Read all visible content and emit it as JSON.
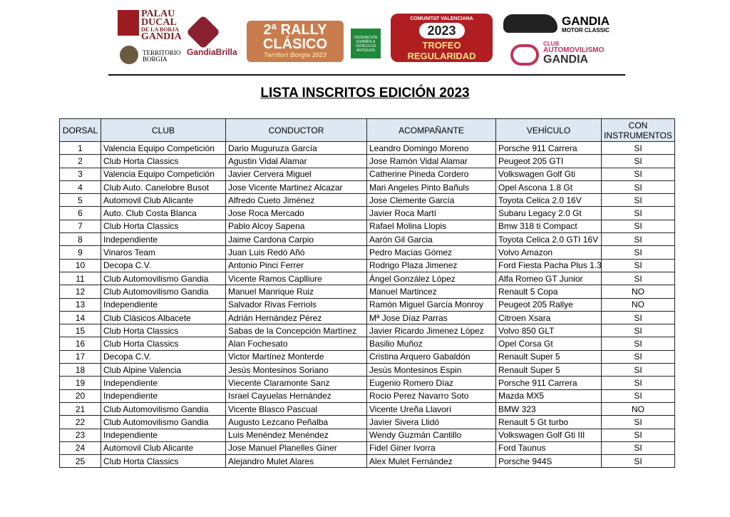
{
  "logos": {
    "palau": {
      "line1": "PALAU",
      "line2": "DUCAL",
      "line3": "DE LA BORJA",
      "line4": "GANDIA"
    },
    "territorio": {
      "line1": "TERRITORIO",
      "line2": "BORGIA"
    },
    "gandia_brilla": "GandiaBrilla",
    "rally": {
      "line1": "2ª RALLY",
      "line2": "CLÁSICO",
      "line3": "Territori Borgia 2023"
    },
    "feva": "FEDERACIÓN ESPAÑOLA VEHÍCULOS ANTIGUOS",
    "trofeo": {
      "top": "COMUNITAT VALENCIANA",
      "year": "2023",
      "bottom": "TROFEO REGULARIDAD"
    },
    "gandia_motor": {
      "line1": "GANDIA",
      "line2": "MOTOR CLASSIC"
    },
    "club_auto": {
      "line1": "CLUB",
      "line2": "AUTOMOVILISMO",
      "line3": "GANDIA"
    }
  },
  "header": {
    "title": "LISTA INSCRITOS EDICIÓN 2023"
  },
  "table": {
    "columns": [
      "DORSAL",
      "CLUB",
      "CONDUCTOR",
      "ACOMPAÑANTE",
      "VEHÍCULO",
      "CON INSTRUMENTOS"
    ],
    "rows": [
      [
        1,
        "Valencia Equipo Competición",
        "Dario Muguruza García",
        "Leandro Domingo Moreno",
        "Porsche 911 Carrera",
        "SI"
      ],
      [
        2,
        "Club Horta Classics",
        "Agustin Vidal Alamar",
        "Jose Ramón Vidal Alamar",
        "Peugeot 205 GTI",
        "SI"
      ],
      [
        3,
        "Valencia Equipo Competición",
        "Javier Cervera Miguel",
        "Catherine Pineda Cordero",
        "Volkswagen Golf Gti",
        "SI"
      ],
      [
        4,
        "Club Auto. Canelobre Busot",
        "Jose Vicente Martinez Alcazar",
        "Mari Angeles Pinto Bañuls",
        "Opel Ascona 1.8 Gt",
        "SI"
      ],
      [
        5,
        "Automovil Club Alicante",
        "Alfredo Cueto Jiménez",
        "Jose Clemente García",
        "Toyota Celica 2.0 16V",
        "SI"
      ],
      [
        6,
        "Auto. Club Costa Blanca",
        "Jose Roca Mercado",
        "Javier Roca Martí",
        "Subaru Legacy 2.0 Gt",
        "SI"
      ],
      [
        7,
        "Club Horta Classics",
        "Pablo Alcoy Sapena",
        "Rafael Molina Llopis",
        "Bmw 318 ti Compact",
        "SI"
      ],
      [
        8,
        "Independiente",
        "Jaime Cardona Carpio",
        "Aarón Gil Garcia",
        "Toyota Celica 2.0 GTI 16V",
        "SI"
      ],
      [
        9,
        "Vinaros Team",
        "Juan Luis Redó Añó",
        "Pedro Macías Gómez",
        "Volvo Amazon",
        "SI"
      ],
      [
        10,
        "Decopa C.V.",
        "Antonio Pinci Ferrer",
        "Rodrigo Plaza Jimenez",
        "Ford Fiesta Pacha Plus 1.3",
        "SI"
      ],
      [
        11,
        "Club Automovilismo Gandia",
        "Vicente Ramos Caplliure",
        "Ángel González López",
        "Alfa Romeo GT Junior",
        "SI"
      ],
      [
        12,
        "Club Automovilismo Gandia",
        "Manuel Manrique Ruiz",
        "Manuel Martincez",
        "Renault 5 Copa",
        "NO"
      ],
      [
        13,
        "Independiente",
        "Salvador Rivas Ferriols",
        "Ramón Miguel García Monroy",
        "Peugeot 205 Rallye",
        "NO"
      ],
      [
        14,
        "Club Clásicos Albacete",
        "Adrián Hernández Pérez",
        "Mª Jose Díaz Parras",
        "Citroen Xsara",
        "SI"
      ],
      [
        15,
        "Club Horta Classics",
        "Sabas de la Concepción Martínez",
        "Javier Ricardo Jimenez López",
        "Volvo 850 GLT",
        "SI"
      ],
      [
        16,
        "Club Horta Classics",
        "Alan Fochesato",
        "Basilio Muñoz",
        "Opel Corsa Gt",
        "SI"
      ],
      [
        17,
        "Decopa C.V.",
        "Victor Martínez  Monterde",
        "Cristina Arquero  Gabaldón",
        "Renault Super 5",
        "SI"
      ],
      [
        18,
        "Club Alpine Valencia",
        "Jesús Montesinos Soriano",
        "Jesús Montesinos Espin",
        "Renault Super 5",
        "SI"
      ],
      [
        19,
        "Independiente",
        "Viecente Claramonte Sanz",
        "Eugenio Romero Díaz",
        "Porsche 911 Carrera",
        "SI"
      ],
      [
        20,
        "Independiente",
        "Israel Cayuelas Hernández",
        "Rocio Perez Navarro Soto",
        "Mazda MX5",
        "SI"
      ],
      [
        21,
        "Club Automovilismo Gandia",
        "Vicente Blasco Pascual",
        "Vicente Ureña Llavorí",
        "BMW 323",
        "NO"
      ],
      [
        22,
        "Club Automovilismo Gandia",
        "Augusto Lezcano Peñalba",
        "Javier Sivera Llidó",
        "Renault 5 Gt turbo",
        "SI"
      ],
      [
        23,
        "Independiente",
        "Luis Menéndez Menéndez",
        "Wendy Guzmán Cantillo",
        "Volkswagen Golf Gti III",
        "SI"
      ],
      [
        24,
        "Automovil Club Alicante",
        "Jose Manuel Planelles Giner",
        "Fidel Giner Ivorra",
        "Ford Taunus",
        "SI"
      ],
      [
        25,
        "Club Horta Classics",
        "Alejandro Mulet Alares",
        "Alex Mulet Fernández",
        "Porsche 944S",
        "SI"
      ]
    ]
  }
}
